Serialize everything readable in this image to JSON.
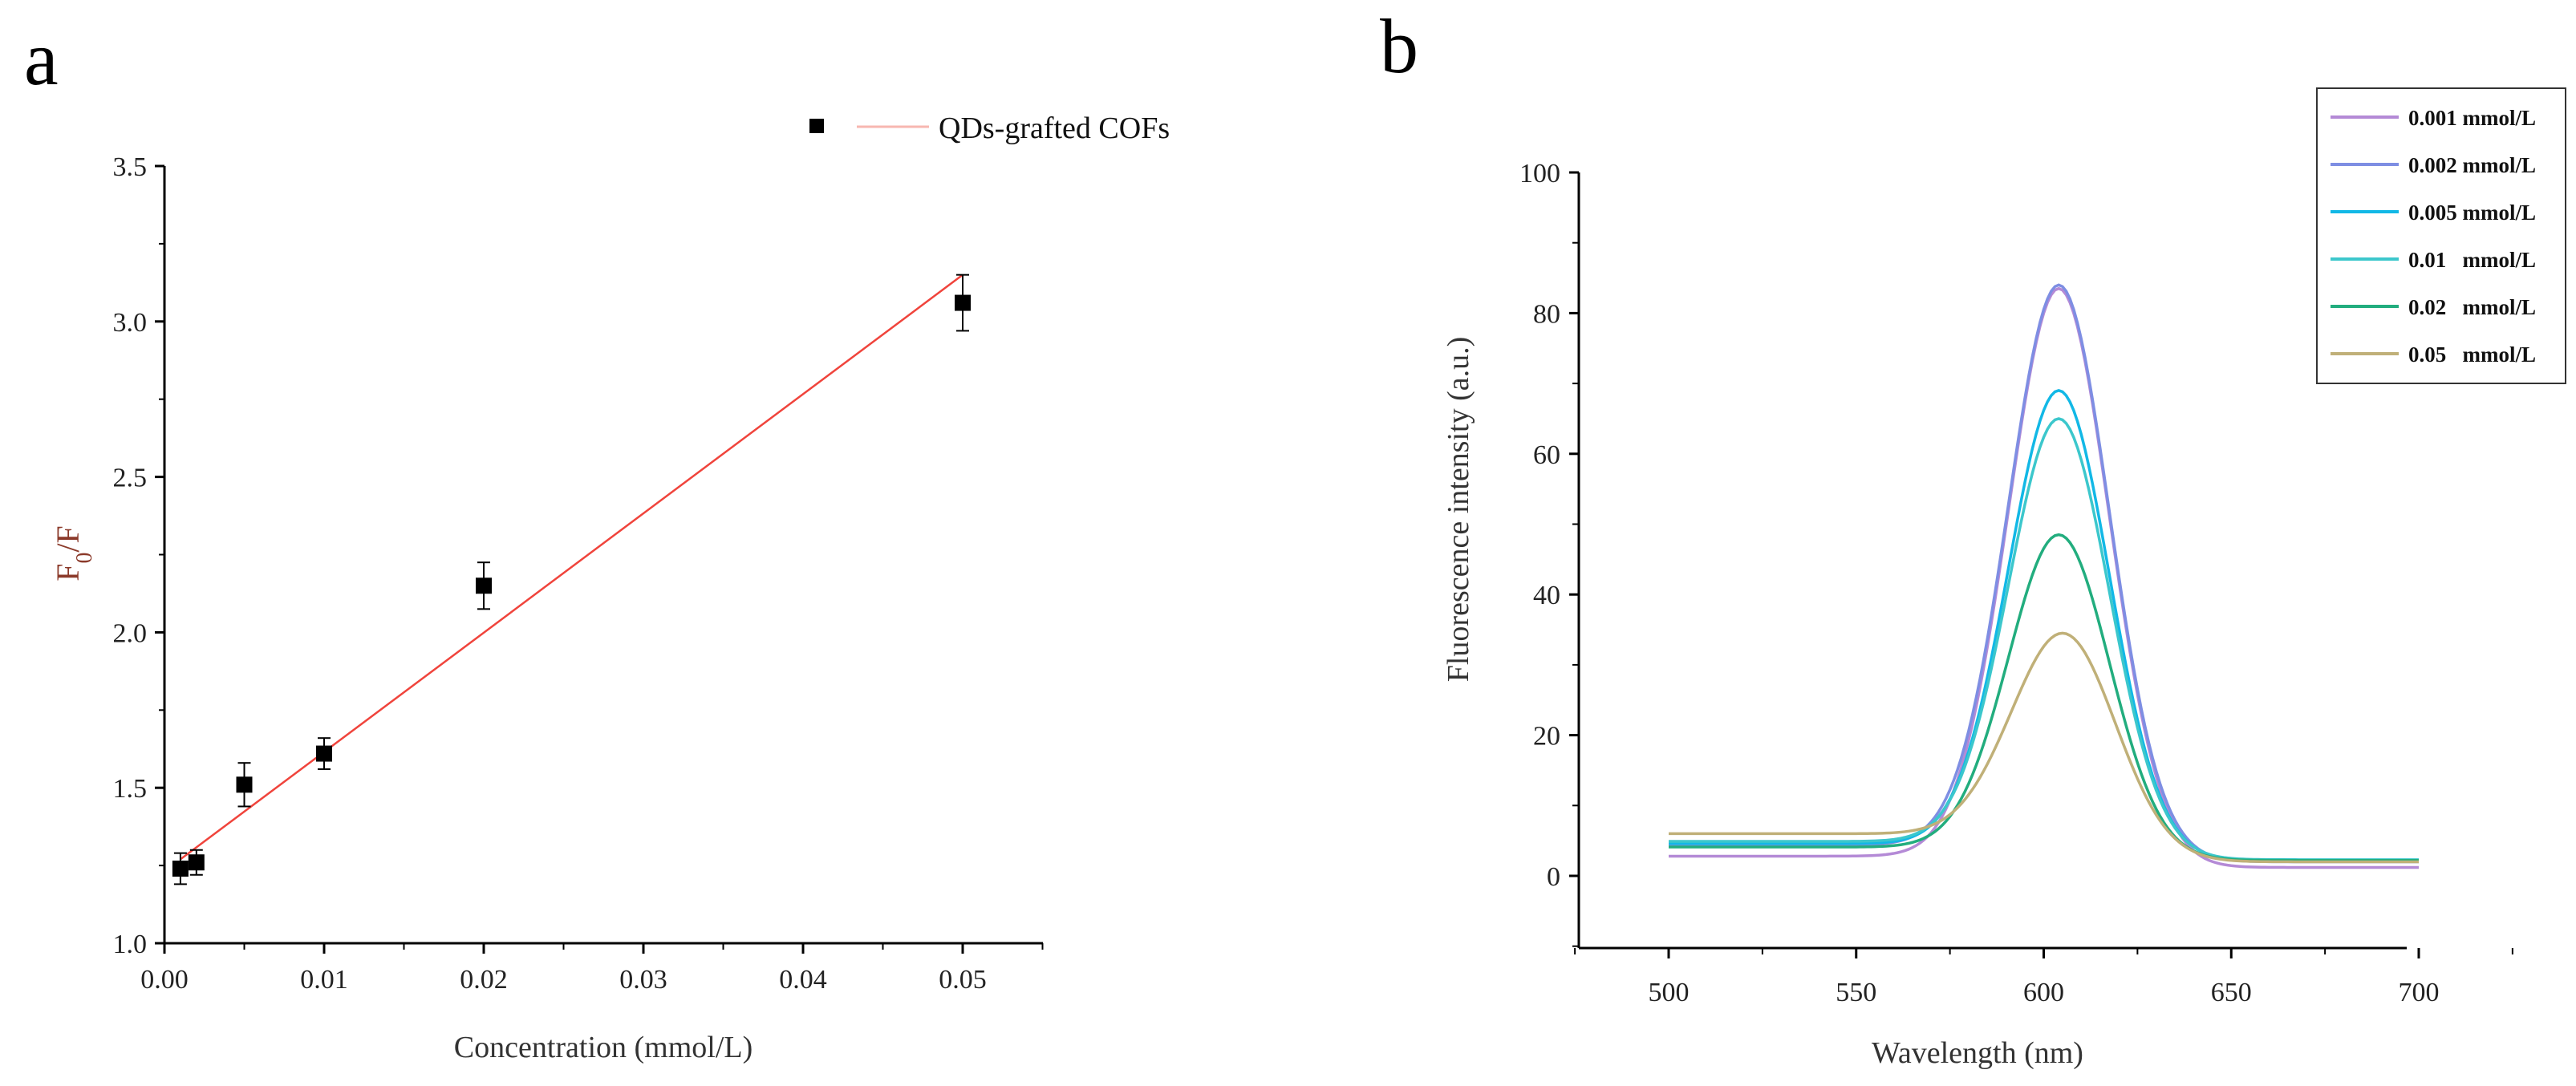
{
  "chart_data": [
    {
      "panel_label": "a",
      "type": "scatter",
      "xlabel": "Concentration (mmol/L)",
      "ylabel": {
        "base": "F",
        "subscript": "0",
        "suffix": "/F"
      },
      "xlim": [
        0,
        0.055
      ],
      "ylim": [
        1.0,
        3.5
      ],
      "xticks": [
        {
          "value": 0,
          "label": "0.00"
        },
        {
          "value": 0.01,
          "label": "0.01"
        },
        {
          "value": 0.02,
          "label": "0.02"
        },
        {
          "value": 0.03,
          "label": "0.03"
        },
        {
          "value": 0.04,
          "label": "0.04"
        },
        {
          "value": 0.05,
          "label": "0.05"
        }
      ],
      "yticks": [
        {
          "value": 1.0,
          "label": "1.0"
        },
        {
          "value": 1.5,
          "label": "1.5"
        },
        {
          "value": 2.0,
          "label": "2.0"
        },
        {
          "value": 2.5,
          "label": "2.5"
        },
        {
          "value": 3.0,
          "label": "3.0"
        },
        {
          "value": 3.5,
          "label": "3.5"
        }
      ],
      "points": [
        {
          "x": 0.001,
          "y": 1.24,
          "err": 0.05
        },
        {
          "x": 0.002,
          "y": 1.26,
          "err": 0.04
        },
        {
          "x": 0.005,
          "y": 1.51,
          "err": 0.07
        },
        {
          "x": 0.01,
          "y": 1.61,
          "err": 0.05
        },
        {
          "x": 0.02,
          "y": 2.15,
          "err": 0.075
        },
        {
          "x": 0.05,
          "y": 3.06,
          "err": 0.09
        }
      ],
      "fit_line": {
        "x": [
          0.001,
          0.05
        ],
        "y": [
          1.27,
          3.15
        ],
        "color": "#f0443c"
      },
      "legend": {
        "label": "QDs-grafted COFs",
        "line_color": "#f7b7b0",
        "marker_color": "#000000"
      }
    },
    {
      "panel_label": "b",
      "type": "line",
      "xlabel": "Wavelength (nm)",
      "ylabel": "Fluorescence intensity (a.u.)",
      "xlim": [
        475,
        725
      ],
      "ylim": [
        -10,
        100
      ],
      "xticks": [
        500,
        550,
        600,
        650,
        700
      ],
      "yticks": [
        0,
        20,
        40,
        60,
        80,
        100
      ],
      "series": [
        {
          "name": "0.001 mmol/L",
          "color": "#b48ad6",
          "peak_x": 604,
          "peak": 83.5,
          "sigma": 13.5,
          "base_left": 2.8,
          "base_right": 1.2
        },
        {
          "name": "0.002 mmol/L",
          "color": "#7e8ee3",
          "peak_x": 604,
          "peak": 84,
          "sigma": 13.5,
          "base_left": 4.4,
          "base_right": 2.0
        },
        {
          "name": "0.005 mmol/L",
          "color": "#12b8e6",
          "peak_x": 604,
          "peak": 69,
          "sigma": 13.5,
          "base_left": 4.6,
          "base_right": 2.2
        },
        {
          "name": "0.01   mmol/L",
          "color": "#3cc7cc",
          "peak_x": 604,
          "peak": 65,
          "sigma": 13.5,
          "base_left": 4.9,
          "base_right": 2.3
        },
        {
          "name": "0.02   mmol/L",
          "color": "#22ad7e",
          "peak_x": 604,
          "peak": 48.5,
          "sigma": 13.5,
          "base_left": 4.1,
          "base_right": 2.2
        },
        {
          "name": "0.05   mmol/L",
          "color": "#c0b078",
          "peak_x": 605,
          "peak": 34.5,
          "sigma": 14,
          "base_left": 6.0,
          "base_right": 2.0
        }
      ]
    }
  ]
}
